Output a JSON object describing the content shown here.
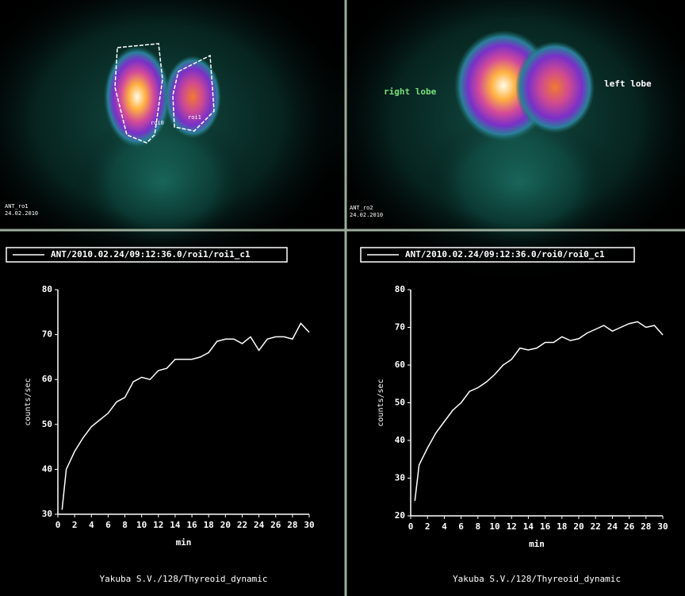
{
  "images": [
    {
      "name": "ANT_ro1",
      "date": "24.02.2010",
      "rois": [
        "roi0",
        "roi1"
      ]
    },
    {
      "name": "ANT_ro2",
      "date": "24.02.2010",
      "labels": [
        "right lobe",
        "left lobe"
      ]
    }
  ],
  "chart_data": [
    {
      "type": "line",
      "ylabel": "counts/sec",
      "xlabel": "min",
      "footer": "Yakuba S.V./128/Thyreoid_dynamic",
      "xlim": [
        0,
        30
      ],
      "xticks": [
        0,
        2,
        4,
        6,
        8,
        10,
        12,
        14,
        16,
        18,
        20,
        22,
        24,
        26,
        28,
        30
      ],
      "ylim": [
        30,
        80
      ],
      "yticks": [
        30,
        40,
        50,
        60,
        70,
        80
      ],
      "x": [
        0.5,
        1,
        2,
        3,
        4,
        5,
        6,
        7,
        8,
        9,
        10,
        11,
        12,
        13,
        14,
        15,
        16,
        17,
        18,
        19,
        20,
        21,
        22,
        23,
        24,
        25,
        26,
        27,
        28,
        29,
        30
      ],
      "series": [
        {
          "name": "ANT/2010.02.24/09:12:36.0/roi1/roi1_c1",
          "color": "#ffffff",
          "values": [
            31,
            40,
            44,
            47,
            49.5,
            51,
            52.5,
            55,
            56,
            59.5,
            60.5,
            60,
            62,
            62.5,
            64.5,
            64.5,
            64.5,
            65,
            66,
            68.5,
            69,
            69,
            68,
            69.5,
            66.5,
            69,
            69.5,
            69.5,
            69,
            72.5,
            70.5
          ]
        }
      ]
    },
    {
      "type": "line",
      "ylabel": "counts/sec",
      "xlabel": "min",
      "footer": "Yakuba S.V./128/Thyreoid_dynamic",
      "xlim": [
        0,
        30
      ],
      "xticks": [
        0,
        2,
        4,
        6,
        8,
        10,
        12,
        14,
        16,
        18,
        20,
        22,
        24,
        26,
        28,
        30
      ],
      "ylim": [
        20,
        80
      ],
      "yticks": [
        20,
        30,
        40,
        50,
        60,
        70,
        80
      ],
      "x": [
        0.5,
        1,
        2,
        3,
        4,
        5,
        6,
        7,
        8,
        9,
        10,
        11,
        12,
        13,
        14,
        15,
        16,
        17,
        18,
        19,
        20,
        21,
        22,
        23,
        24,
        25,
        26,
        27,
        28,
        29,
        30
      ],
      "series": [
        {
          "name": "ANT/2010.02.24/09:12:36.0/roi0/roi0_c1",
          "color": "#ffffff",
          "values": [
            24,
            33.5,
            38,
            42,
            45,
            48,
            50,
            53,
            54,
            55.5,
            57.5,
            60,
            61.5,
            64.5,
            64,
            64.5,
            66,
            66,
            67.5,
            66.5,
            67,
            68.5,
            69.5,
            70.5,
            69,
            70,
            71,
            71.5,
            70,
            70.5,
            68
          ]
        }
      ]
    }
  ]
}
